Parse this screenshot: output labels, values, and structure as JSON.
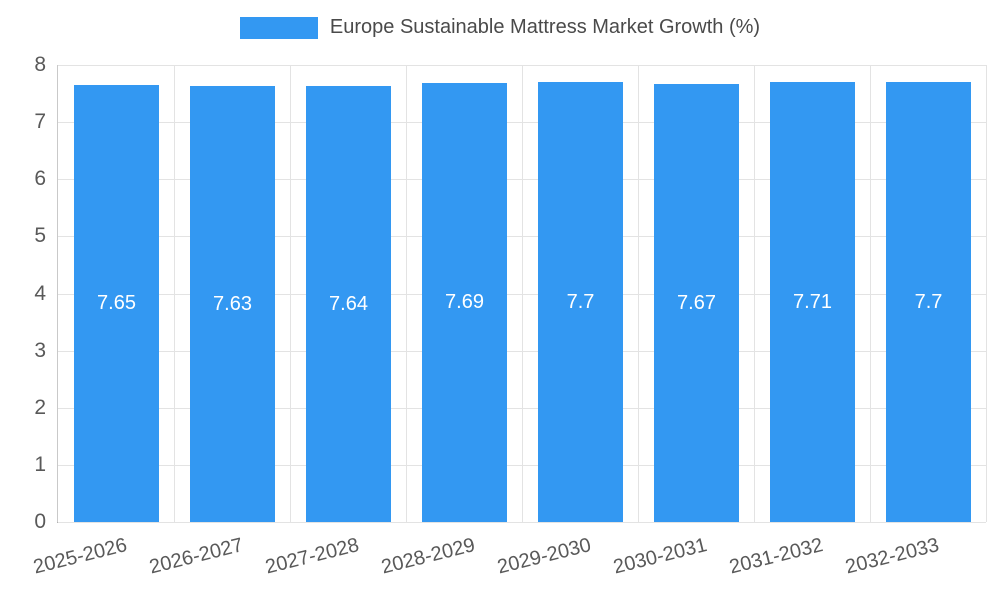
{
  "chart_data": {
    "type": "bar",
    "title": "Europe Sustainable Mattress Market Growth (%)",
    "categories": [
      "2025-2026",
      "2026-2027",
      "2027-2028",
      "2028-2029",
      "2029-2030",
      "2030-2031",
      "2031-2032",
      "2032-2033"
    ],
    "values": [
      7.65,
      7.63,
      7.64,
      7.69,
      7.7,
      7.67,
      7.71,
      7.7
    ],
    "value_labels": [
      "7.65",
      "7.63",
      "7.64",
      "7.69",
      "7.7",
      "7.67",
      "7.71",
      "7.7"
    ],
    "xlabel": "",
    "ylabel": "",
    "ylim": [
      0,
      8
    ],
    "ytick_step": 1,
    "grid": true,
    "legend_position": "top",
    "bar_color": "#3398f2",
    "value_label_color": "#ffffff",
    "axis_text_color": "#595959",
    "grid_color": "#e3e3e3"
  }
}
